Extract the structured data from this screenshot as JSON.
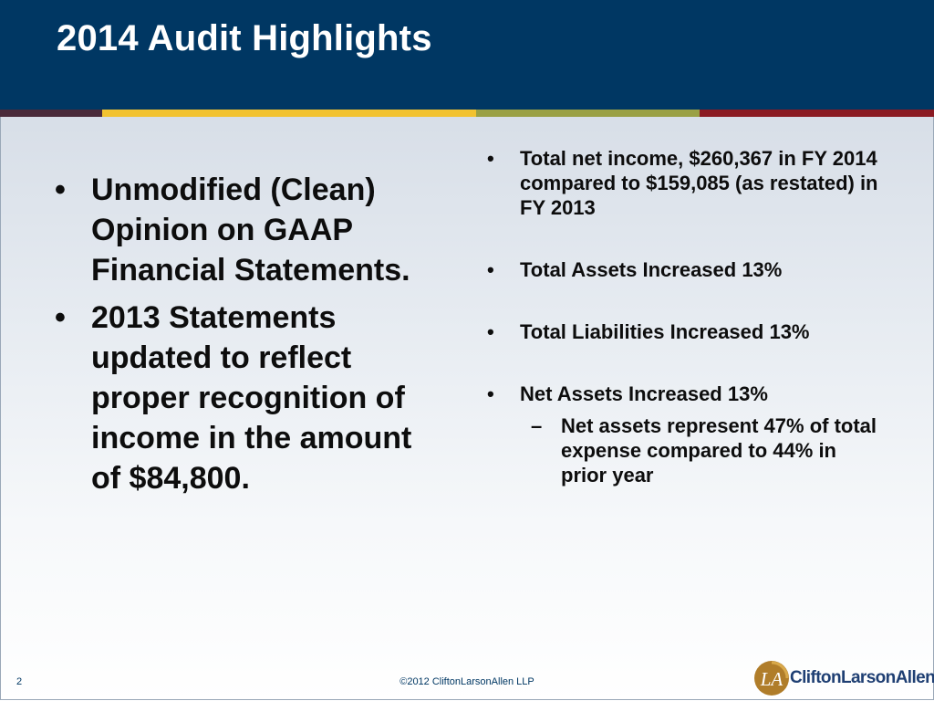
{
  "slide": {
    "title": "2014 Audit Highlights",
    "page_number": "2",
    "copyright": "©2012 CliftonLarsonAllen LLP"
  },
  "colors": {
    "header": "#003763",
    "accent_dark": "#4a2a3a",
    "accent_gold": "#f2c230",
    "accent_olive": "#9aa044",
    "accent_red": "#8b1a22"
  },
  "left_bullets": [
    "Unmodified (Clean) Opinion on GAAP Financial Statements.",
    "2013 Statements updated to reflect proper recognition of income in the amount of $84,800."
  ],
  "right_bullets": [
    {
      "text": "Total net income, $260,367 in FY 2014 compared to $159,085 (as restated) in FY 2013"
    },
    {
      "text": "Total Assets Increased 13%"
    },
    {
      "text": "Total Liabilities Increased 13%"
    },
    {
      "text": "Net Assets Increased 13%",
      "sub": "Net assets represent 47% of total expense compared to 44% in prior year"
    }
  ],
  "bullet_glyph": "•",
  "dash_glyph": "–",
  "logo": {
    "mark_text": "LA",
    "name": "CliftonLarsonAllen",
    "icon": "cla-logo-icon"
  }
}
